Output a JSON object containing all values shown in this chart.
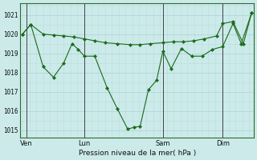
{
  "xlabel": "Pression niveau de la mer( hPa )",
  "bg_color": "#cceaea",
  "grid_major_color": "#aad4d4",
  "grid_minor_color": "#bbdede",
  "line_color": "#1a6b1a",
  "marker_color": "#1a6b1a",
  "ylim": [
    1014.6,
    1021.6
  ],
  "yticks": [
    1015,
    1016,
    1017,
    1018,
    1019,
    1020,
    1021
  ],
  "xlim": [
    -0.1,
    11.2
  ],
  "xtick_positions": [
    0.2,
    3.0,
    6.8,
    9.7
  ],
  "xtick_labels": [
    "Ven",
    "Lun",
    "Sam",
    "Dim"
  ],
  "vline_positions": [
    0.2,
    3.0,
    6.8,
    9.7
  ],
  "series1_x": [
    0.0,
    0.4,
    1.0,
    1.5,
    2.0,
    2.5,
    3.0,
    3.5,
    4.0,
    4.6,
    5.2,
    5.7,
    6.2,
    6.8,
    7.3,
    7.8,
    8.3,
    8.8,
    9.4,
    9.7,
    10.2,
    10.7,
    11.1
  ],
  "series1_y": [
    1020.0,
    1020.5,
    1020.0,
    1019.95,
    1019.9,
    1019.85,
    1019.75,
    1019.65,
    1019.55,
    1019.5,
    1019.45,
    1019.45,
    1019.5,
    1019.55,
    1019.6,
    1019.6,
    1019.65,
    1019.75,
    1019.9,
    1020.55,
    1020.65,
    1019.5,
    1021.1
  ],
  "series2_x": [
    0.0,
    0.4,
    1.0,
    1.5,
    2.0,
    2.4,
    2.7,
    3.0,
    3.5,
    4.1,
    4.6,
    5.1,
    5.4,
    5.7,
    6.1,
    6.5,
    6.8,
    7.2,
    7.7,
    8.2,
    8.7,
    9.2,
    9.7,
    10.2,
    10.6,
    11.1
  ],
  "series2_y": [
    1020.0,
    1020.5,
    1018.3,
    1017.75,
    1018.5,
    1019.5,
    1019.2,
    1018.85,
    1018.85,
    1017.2,
    1016.1,
    1015.05,
    1015.15,
    1015.2,
    1017.1,
    1017.6,
    1019.1,
    1018.2,
    1019.25,
    1018.85,
    1018.85,
    1019.2,
    1019.35,
    1020.55,
    1019.5,
    1021.1
  ]
}
